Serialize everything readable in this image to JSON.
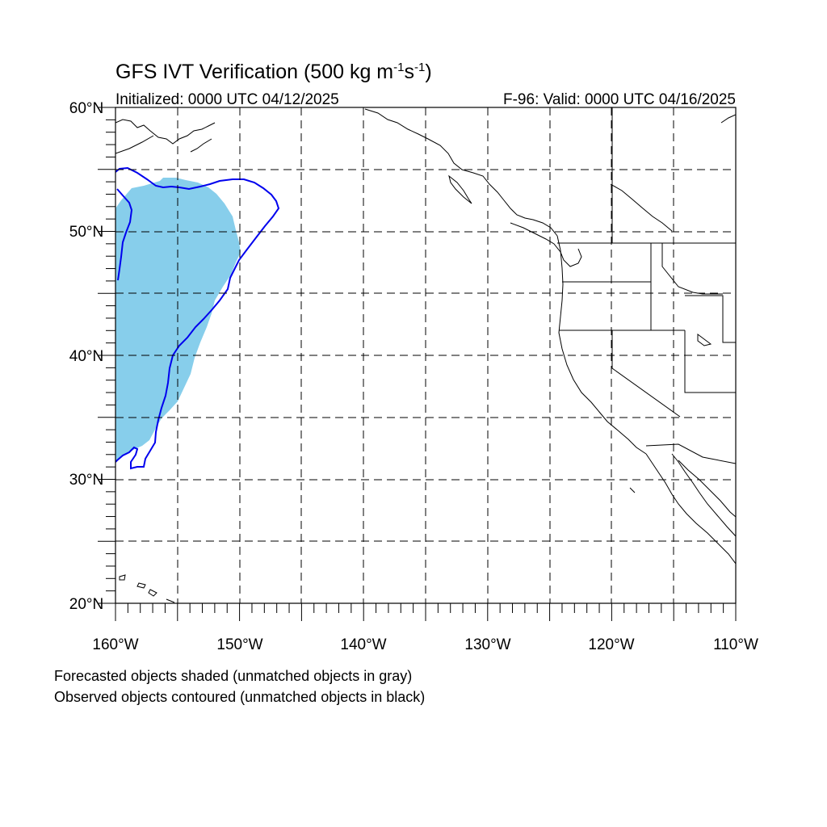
{
  "title": {
    "main": "GFS IVT Verification (500 kg m",
    "sup1": "-1",
    "mid": "s",
    "sup2": "-1",
    "close": ")"
  },
  "subtitle_left": "Initialized: 0000 UTC 04/12/2025",
  "subtitle_right": "F-96: Valid: 0000 UTC 04/16/2025",
  "footnotes": [
    "Forecasted objects shaded (unmatched objects in gray)",
    "Observed objects contoured (unmatched objects in black)"
  ],
  "colors": {
    "forecast_fill": "#87ceeb",
    "observed_contour": "#0000ee",
    "coastline": "#000000",
    "grid": "#000000"
  },
  "map": {
    "projection": "cylindrical-equidistant",
    "lon_range": [
      -160,
      -110
    ],
    "lat_range": [
      20,
      60
    ],
    "grid_spacing_deg": 5,
    "grid_style": "dashed",
    "lat_labels": [
      "20°N",
      "30°N",
      "40°N",
      "50°N",
      "60°N"
    ],
    "lon_labels": [
      "160°W",
      "150°W",
      "140°W",
      "130°W",
      "120°W",
      "110°W"
    ]
  }
}
